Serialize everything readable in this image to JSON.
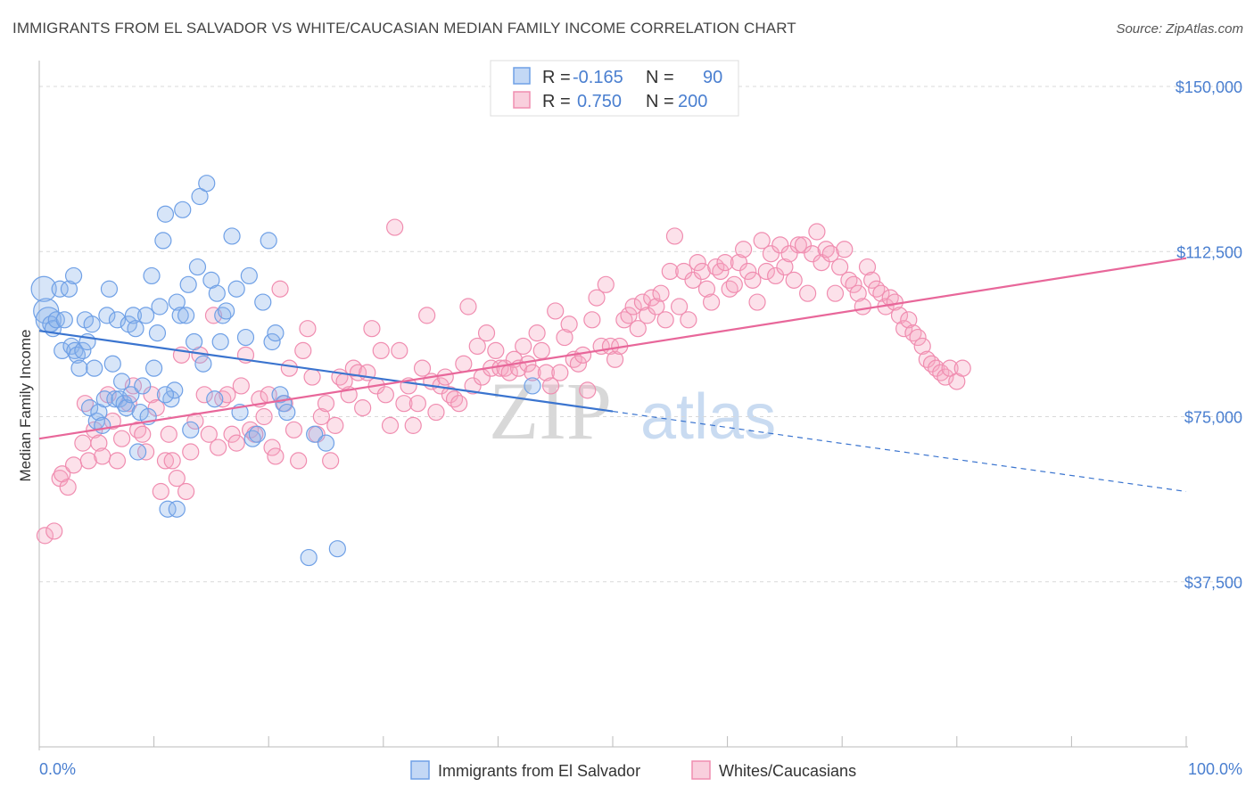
{
  "title": "IMMIGRANTS FROM EL SALVADOR VS WHITE/CAUCASIAN MEDIAN FAMILY INCOME CORRELATION CHART",
  "source": "Source: ZipAtlas.com",
  "watermark": {
    "zip": "ZIP",
    "atlas": "atlas"
  },
  "legend_top": [
    {
      "r_label": "R =",
      "r_value": "-0.165",
      "n_label": "N =",
      "n_value": "90",
      "color": "#6fa0e6"
    },
    {
      "r_label": "R =",
      "r_value": "0.750",
      "n_label": "N =",
      "n_value": "200",
      "color": "#f08db0"
    }
  ],
  "legend_bottom": [
    {
      "label": "Immigrants from El Salvador",
      "color": "#6fa0e6"
    },
    {
      "label": "Whites/Caucasians",
      "color": "#f08db0"
    }
  ],
  "chart_data": {
    "type": "scatter",
    "title": "IMMIGRANTS FROM EL SALVADOR VS WHITE/CAUCASIAN MEDIAN FAMILY INCOME CORRELATION CHART",
    "xlabel": "",
    "ylabel": "Median Family Income",
    "xlim": [
      0,
      100
    ],
    "ylim": [
      0,
      150000
    ],
    "x_tick_labels": [
      "0.0%",
      "100.0%"
    ],
    "y_ticks": [
      37500,
      75000,
      112500,
      150000
    ],
    "y_tick_labels": [
      "$37,500",
      "$75,000",
      "$112,500",
      "$150,000"
    ],
    "grid": "horizontal dashed",
    "legend_position": "top-center and bottom",
    "series": [
      {
        "name": "Immigrants from El Salvador",
        "color": "#6fa0e6",
        "r": -0.165,
        "n": 90,
        "trend": {
          "x": [
            0,
            50
          ],
          "y": [
            94500,
            76200
          ],
          "dashed_extension": {
            "x": [
              50,
              100
            ],
            "y": [
              76200,
              58000
            ]
          }
        },
        "points": [
          [
            0.4,
            104
          ],
          [
            0.6,
            99
          ],
          [
            0.8,
            97
          ],
          [
            1.0,
            96
          ],
          [
            1.2,
            95
          ],
          [
            1.5,
            97
          ],
          [
            1.8,
            104
          ],
          [
            2.0,
            90
          ],
          [
            2.2,
            97
          ],
          [
            2.6,
            104
          ],
          [
            2.8,
            91
          ],
          [
            3.0,
            107
          ],
          [
            3.1,
            90
          ],
          [
            3.3,
            89
          ],
          [
            3.5,
            86
          ],
          [
            3.8,
            90
          ],
          [
            4.0,
            97
          ],
          [
            4.2,
            92
          ],
          [
            4.4,
            77
          ],
          [
            4.6,
            96
          ],
          [
            4.8,
            86
          ],
          [
            5.0,
            74
          ],
          [
            5.2,
            76
          ],
          [
            5.5,
            73
          ],
          [
            5.7,
            79
          ],
          [
            5.9,
            98
          ],
          [
            6.1,
            104
          ],
          [
            6.4,
            87
          ],
          [
            6.6,
            79
          ],
          [
            6.8,
            97
          ],
          [
            7.0,
            79
          ],
          [
            7.2,
            83
          ],
          [
            7.4,
            78
          ],
          [
            7.6,
            77
          ],
          [
            7.8,
            96
          ],
          [
            8.0,
            80
          ],
          [
            8.2,
            98
          ],
          [
            8.4,
            95
          ],
          [
            8.6,
            67
          ],
          [
            8.8,
            76
          ],
          [
            9.0,
            82
          ],
          [
            9.3,
            98
          ],
          [
            9.5,
            75
          ],
          [
            9.8,
            107
          ],
          [
            10.0,
            86
          ],
          [
            10.3,
            94
          ],
          [
            10.5,
            100
          ],
          [
            10.8,
            115
          ],
          [
            11.0,
            121
          ],
          [
            11.2,
            54
          ],
          [
            11.5,
            79
          ],
          [
            11.8,
            81
          ],
          [
            12.0,
            101
          ],
          [
            12.3,
            98
          ],
          [
            12.5,
            122
          ],
          [
            12.8,
            98
          ],
          [
            13.0,
            105
          ],
          [
            13.2,
            72
          ],
          [
            13.5,
            92
          ],
          [
            13.8,
            109
          ],
          [
            14.0,
            125
          ],
          [
            14.3,
            87
          ],
          [
            14.6,
            128
          ],
          [
            15.0,
            106
          ],
          [
            15.3,
            79
          ],
          [
            15.5,
            103
          ],
          [
            15.8,
            92
          ],
          [
            16.0,
            98
          ],
          [
            16.3,
            99
          ],
          [
            16.8,
            116
          ],
          [
            17.2,
            104
          ],
          [
            17.5,
            76
          ],
          [
            18.0,
            93
          ],
          [
            18.3,
            107
          ],
          [
            18.6,
            70
          ],
          [
            19.0,
            71
          ],
          [
            19.5,
            101
          ],
          [
            20.0,
            115
          ],
          [
            20.3,
            92
          ],
          [
            20.6,
            94
          ],
          [
            21.0,
            80
          ],
          [
            21.3,
            78
          ],
          [
            21.6,
            76
          ],
          [
            23.5,
            43
          ],
          [
            24.0,
            71
          ],
          [
            25.0,
            69
          ],
          [
            26.0,
            45
          ],
          [
            12.0,
            54
          ],
          [
            43,
            82
          ],
          [
            11,
            80
          ]
        ]
      },
      {
        "name": "Whites/Caucasians",
        "color": "#f08db0",
        "r": 0.75,
        "n": 200,
        "trend": {
          "x": [
            0,
            100
          ],
          "y": [
            70000,
            111000
          ]
        },
        "points": [
          [
            0.5,
            48
          ],
          [
            1.3,
            49
          ],
          [
            1.8,
            61
          ],
          [
            2.0,
            62
          ],
          [
            2.5,
            59
          ],
          [
            3.0,
            64
          ],
          [
            3.8,
            69
          ],
          [
            4.0,
            78
          ],
          [
            4.3,
            65
          ],
          [
            4.8,
            72
          ],
          [
            5.2,
            69
          ],
          [
            5.5,
            66
          ],
          [
            6.0,
            80
          ],
          [
            6.4,
            74
          ],
          [
            6.8,
            65
          ],
          [
            7.2,
            70
          ],
          [
            7.8,
            78
          ],
          [
            8.2,
            82
          ],
          [
            8.6,
            72
          ],
          [
            9.0,
            71
          ],
          [
            9.3,
            67
          ],
          [
            9.8,
            80
          ],
          [
            10.2,
            77
          ],
          [
            10.6,
            58
          ],
          [
            11.0,
            65
          ],
          [
            11.3,
            71
          ],
          [
            11.6,
            65
          ],
          [
            12.0,
            61
          ],
          [
            12.4,
            89
          ],
          [
            12.8,
            58
          ],
          [
            13.2,
            67
          ],
          [
            13.6,
            74
          ],
          [
            14.0,
            89
          ],
          [
            14.4,
            80
          ],
          [
            14.8,
            71
          ],
          [
            15.2,
            98
          ],
          [
            15.6,
            68
          ],
          [
            16.0,
            79
          ],
          [
            16.4,
            80
          ],
          [
            16.8,
            71
          ],
          [
            17.2,
            69
          ],
          [
            17.6,
            82
          ],
          [
            18.0,
            89
          ],
          [
            18.4,
            72
          ],
          [
            18.8,
            71
          ],
          [
            19.2,
            79
          ],
          [
            19.6,
            75
          ],
          [
            20.0,
            80
          ],
          [
            20.3,
            68
          ],
          [
            20.6,
            66
          ],
          [
            21.0,
            104
          ],
          [
            21.4,
            78
          ],
          [
            21.8,
            86
          ],
          [
            22.2,
            72
          ],
          [
            22.6,
            65
          ],
          [
            23.0,
            90
          ],
          [
            23.4,
            95
          ],
          [
            23.8,
            84
          ],
          [
            24.2,
            71
          ],
          [
            24.6,
            75
          ],
          [
            25.0,
            78
          ],
          [
            25.4,
            65
          ],
          [
            25.8,
            73
          ],
          [
            26.2,
            84
          ],
          [
            26.6,
            83
          ],
          [
            27.0,
            80
          ],
          [
            27.4,
            86
          ],
          [
            27.8,
            85
          ],
          [
            28.2,
            77
          ],
          [
            28.6,
            85
          ],
          [
            29.0,
            95
          ],
          [
            29.4,
            82
          ],
          [
            29.8,
            90
          ],
          [
            30.2,
            80
          ],
          [
            30.6,
            73
          ],
          [
            31.0,
            118
          ],
          [
            31.4,
            90
          ],
          [
            31.8,
            78
          ],
          [
            32.2,
            82
          ],
          [
            32.6,
            73
          ],
          [
            33.0,
            78
          ],
          [
            33.4,
            86
          ],
          [
            33.8,
            98
          ],
          [
            34.2,
            83
          ],
          [
            34.6,
            76
          ],
          [
            35.0,
            82
          ],
          [
            35.4,
            84
          ],
          [
            35.8,
            80
          ],
          [
            36.2,
            79
          ],
          [
            36.6,
            78
          ],
          [
            37.0,
            87
          ],
          [
            37.4,
            100
          ],
          [
            37.8,
            82
          ],
          [
            38.2,
            91
          ],
          [
            38.6,
            84
          ],
          [
            39.0,
            94
          ],
          [
            39.4,
            86
          ],
          [
            39.8,
            90
          ],
          [
            40.2,
            86
          ],
          [
            40.6,
            86
          ],
          [
            41.0,
            85
          ],
          [
            41.4,
            88
          ],
          [
            41.8,
            86
          ],
          [
            42.2,
            91
          ],
          [
            42.6,
            87
          ],
          [
            43.0,
            85
          ],
          [
            43.4,
            94
          ],
          [
            43.8,
            90
          ],
          [
            44.2,
            85
          ],
          [
            44.6,
            82
          ],
          [
            45.0,
            99
          ],
          [
            45.4,
            85
          ],
          [
            45.8,
            93
          ],
          [
            46.2,
            96
          ],
          [
            46.6,
            88
          ],
          [
            47.0,
            87
          ],
          [
            47.4,
            89
          ],
          [
            47.8,
            81
          ],
          [
            48.2,
            97
          ],
          [
            48.6,
            102
          ],
          [
            49.0,
            91
          ],
          [
            49.4,
            105
          ],
          [
            49.8,
            91
          ],
          [
            50.2,
            88
          ],
          [
            50.6,
            91
          ],
          [
            51.0,
            97
          ],
          [
            51.4,
            98
          ],
          [
            51.8,
            100
          ],
          [
            52.2,
            95
          ],
          [
            52.6,
            101
          ],
          [
            53.0,
            98
          ],
          [
            53.4,
            102
          ],
          [
            53.8,
            100
          ],
          [
            54.2,
            103
          ],
          [
            54.6,
            97
          ],
          [
            55.0,
            108
          ],
          [
            55.4,
            116
          ],
          [
            55.8,
            100
          ],
          [
            56.2,
            108
          ],
          [
            56.6,
            97
          ],
          [
            57.0,
            106
          ],
          [
            57.4,
            110
          ],
          [
            57.8,
            108
          ],
          [
            58.2,
            104
          ],
          [
            58.6,
            101
          ],
          [
            59.0,
            109
          ],
          [
            59.4,
            108
          ],
          [
            59.8,
            110
          ],
          [
            60.2,
            104
          ],
          [
            60.6,
            105
          ],
          [
            61.0,
            110
          ],
          [
            61.4,
            113
          ],
          [
            61.8,
            108
          ],
          [
            62.2,
            106
          ],
          [
            62.6,
            101
          ],
          [
            63.0,
            115
          ],
          [
            63.4,
            108
          ],
          [
            63.8,
            112
          ],
          [
            64.2,
            107
          ],
          [
            64.6,
            114
          ],
          [
            65.0,
            109
          ],
          [
            65.4,
            112
          ],
          [
            65.8,
            106
          ],
          [
            66.2,
            114
          ],
          [
            66.6,
            114
          ],
          [
            67.0,
            103
          ],
          [
            67.4,
            112
          ],
          [
            67.8,
            117
          ],
          [
            68.2,
            110
          ],
          [
            68.6,
            113
          ],
          [
            69.0,
            112
          ],
          [
            69.4,
            103
          ],
          [
            69.8,
            109
          ],
          [
            70.2,
            113
          ],
          [
            70.6,
            106
          ],
          [
            71.0,
            105
          ],
          [
            71.4,
            103
          ],
          [
            71.8,
            100
          ],
          [
            72.2,
            109
          ],
          [
            72.6,
            106
          ],
          [
            73.0,
            104
          ],
          [
            73.4,
            103
          ],
          [
            73.8,
            100
          ],
          [
            74.2,
            102
          ],
          [
            74.6,
            101
          ],
          [
            75.0,
            98
          ],
          [
            75.4,
            95
          ],
          [
            75.8,
            97
          ],
          [
            76.2,
            94
          ],
          [
            76.6,
            93
          ],
          [
            77.0,
            91
          ],
          [
            77.4,
            88
          ],
          [
            77.8,
            87
          ],
          [
            78.2,
            86
          ],
          [
            78.6,
            85
          ],
          [
            79.0,
            84
          ],
          [
            79.4,
            86
          ],
          [
            80.0,
            83
          ],
          [
            80.5,
            86
          ]
        ]
      }
    ]
  }
}
